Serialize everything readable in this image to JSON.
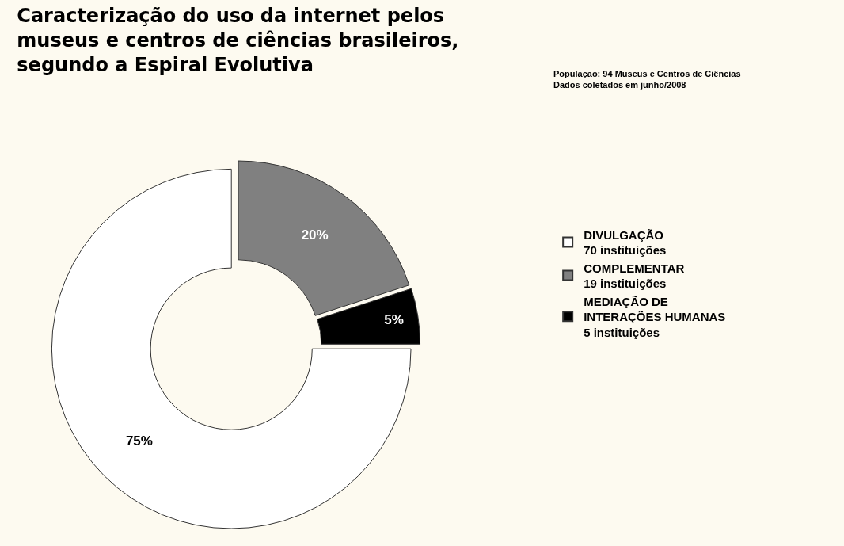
{
  "chart_data": {
    "type": "donut",
    "title": "Caracterização do uso da internet pelos\nmuseus e centros de ciências brasileiros,\nsegundo a Espiral Evolutiva",
    "subtitle": "População: 94 Museus e Centros de Ciências\nDados coletados em junho/2008",
    "categories": [
      "DIVULGAÇÃO\n70 instituições",
      "COMPLEMENTAR\n19 instituições",
      "MEDIAÇÃO DE\nINTERAÇÕES HUMANAS\n5 instituições"
    ],
    "values": [
      75,
      20,
      5
    ],
    "value_labels": [
      "75%",
      "20%",
      "5%"
    ],
    "colors": [
      "#ffffff",
      "#808080",
      "#000000"
    ],
    "legend": "right"
  }
}
